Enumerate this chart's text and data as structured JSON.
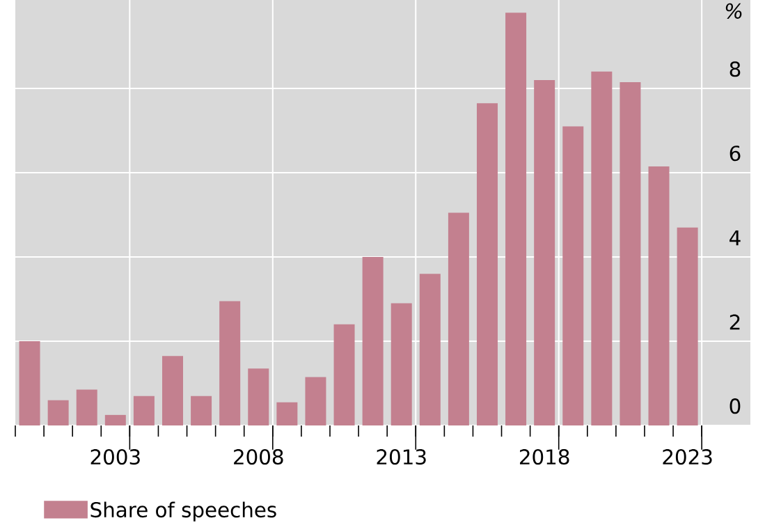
{
  "chart_data": {
    "type": "bar",
    "ylabel": "%",
    "categories": [
      null,
      null,
      null,
      "2003",
      null,
      null,
      null,
      null,
      "2008",
      null,
      null,
      null,
      null,
      "2013",
      null,
      null,
      null,
      null,
      "2018",
      null,
      null,
      null,
      null,
      "2023"
    ],
    "series": [
      {
        "name": "Share of speeches",
        "color": "#c3808f",
        "values": [
          2.0,
          0.6,
          0.85,
          0.25,
          0.7,
          1.65,
          0.7,
          2.95,
          1.35,
          0.55,
          1.15,
          2.4,
          4.0,
          2.9,
          3.6,
          5.05,
          7.65,
          9.8,
          8.2,
          7.1,
          8.4,
          8.15,
          6.15,
          4.7
        ]
      }
    ],
    "ylim": [
      0,
      10.1
    ],
    "yticks": [
      0,
      2,
      4,
      6,
      8
    ],
    "grid": true,
    "legend": "bottom left"
  }
}
